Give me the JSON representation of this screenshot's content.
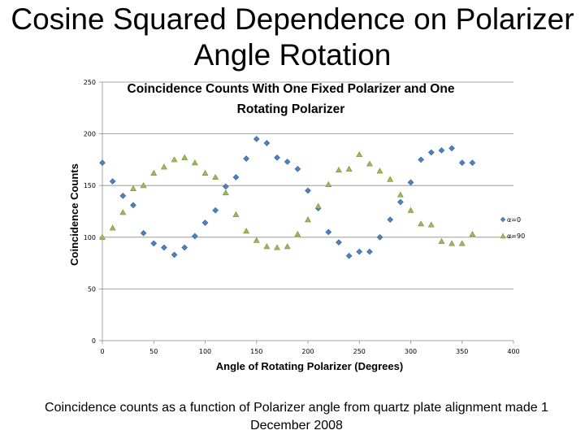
{
  "slide": {
    "title_line1": "Cosine Squared Dependence on Polarizer",
    "title_line2": "Angle Rotation",
    "caption_line1": "Coincidence counts as a function of Polarizer angle from quartz plate alignment made 1",
    "caption_line2": "December 2008"
  },
  "chart_data": {
    "type": "scatter",
    "title_line1": "Coincidence Counts With One Fixed Polarizer and One",
    "title_line2": "Rotating Polarizer",
    "xlabel": "Angle of Rotating Polarizer (Degrees)",
    "ylabel": "Coincidence Counts",
    "xlim": [
      0,
      400
    ],
    "ylim": [
      0,
      250
    ],
    "xticks": [
      "0",
      "50",
      "100",
      "150",
      "200",
      "250",
      "300",
      "350",
      "400"
    ],
    "yticks": [
      "0",
      "50",
      "100",
      "150",
      "200",
      "250"
    ],
    "grid": "horizontal",
    "legend_position": "right",
    "series": [
      {
        "name": "α=0",
        "color": "#4f81bd",
        "marker": "diamond",
        "x": [
          0,
          10,
          20,
          30,
          40,
          50,
          60,
          70,
          80,
          90,
          100,
          110,
          120,
          130,
          140,
          150,
          160,
          170,
          180,
          190,
          200,
          210,
          220,
          230,
          240,
          250,
          260,
          270,
          280,
          290,
          300,
          310,
          320,
          330,
          340,
          350,
          360
        ],
        "y": [
          172,
          154,
          140,
          131,
          104,
          94,
          90,
          83,
          90,
          101,
          114,
          126,
          149,
          158,
          176,
          195,
          191,
          177,
          173,
          166,
          145,
          128,
          105,
          95,
          82,
          86,
          86,
          100,
          117,
          134,
          153,
          175,
          182,
          184,
          186,
          172,
          172
        ]
      },
      {
        "name": "α=90",
        "color": "#9bbb59",
        "marker": "triangle",
        "x": [
          0,
          10,
          20,
          30,
          40,
          50,
          60,
          70,
          80,
          90,
          100,
          110,
          120,
          130,
          140,
          150,
          160,
          170,
          180,
          190,
          200,
          210,
          220,
          230,
          240,
          250,
          260,
          270,
          280,
          290,
          300,
          310,
          320,
          330,
          340,
          350,
          360
        ],
        "y": [
          100,
          109,
          124,
          147,
          150,
          162,
          168,
          175,
          177,
          172,
          162,
          158,
          143,
          122,
          106,
          97,
          91,
          90,
          91,
          103,
          117,
          130,
          151,
          165,
          166,
          180,
          171,
          164,
          156,
          141,
          126,
          113,
          112,
          96,
          94,
          94,
          103
        ]
      }
    ]
  }
}
